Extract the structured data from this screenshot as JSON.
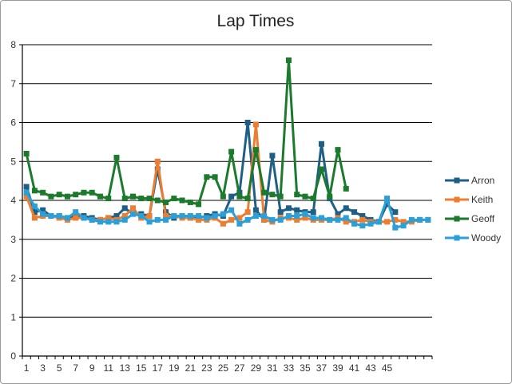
{
  "chart_data": {
    "type": "line",
    "title": "Lap Times",
    "xlabel": "",
    "ylabel": "",
    "ylim": [
      0,
      8
    ],
    "yticks": [
      0,
      1,
      2,
      3,
      4,
      5,
      6,
      7,
      8
    ],
    "x_tick_labels": [
      1,
      3,
      5,
      7,
      9,
      11,
      13,
      15,
      17,
      19,
      21,
      23,
      25,
      27,
      29,
      31,
      33,
      35,
      37,
      39,
      41,
      43,
      45
    ],
    "x_count": 50,
    "grid": true,
    "legend_position": "right",
    "series": [
      {
        "name": "Arron",
        "color": "#1f5f86",
        "values": [
          4.35,
          3.7,
          3.75,
          3.6,
          3.6,
          3.55,
          3.6,
          3.6,
          3.55,
          3.5,
          3.55,
          3.6,
          3.8,
          3.65,
          3.65,
          3.6,
          4.8,
          3.7,
          3.55,
          3.6,
          3.55,
          3.55,
          3.6,
          3.65,
          3.6,
          4.1,
          4.2,
          6.0,
          3.75,
          3.5,
          5.15,
          3.7,
          3.8,
          3.75,
          3.7,
          3.7,
          5.45,
          4.05,
          3.65,
          3.8,
          3.7,
          3.6,
          3.5,
          3.45,
          3.9,
          3.7
        ]
      },
      {
        "name": "Keith",
        "color": "#ed7d31",
        "values": [
          4.1,
          3.55,
          3.6,
          3.6,
          3.55,
          3.5,
          3.55,
          3.55,
          3.5,
          3.5,
          3.55,
          3.5,
          3.6,
          3.8,
          3.55,
          3.6,
          5.0,
          3.6,
          3.6,
          3.55,
          3.55,
          3.5,
          3.5,
          3.55,
          3.4,
          3.5,
          3.55,
          3.7,
          5.95,
          3.5,
          3.45,
          3.55,
          3.55,
          3.5,
          3.55,
          3.5,
          3.5,
          3.5,
          3.55,
          3.45,
          3.45,
          3.5,
          3.45,
          3.45,
          3.45,
          3.5,
          3.45,
          3.45,
          3.5,
          3.5
        ]
      },
      {
        "name": "Geoff",
        "color": "#1c7a2c",
        "values": [
          5.2,
          4.25,
          4.2,
          4.1,
          4.15,
          4.1,
          4.15,
          4.2,
          4.2,
          4.1,
          4.05,
          5.1,
          4.05,
          4.1,
          4.05,
          4.05,
          4.0,
          3.95,
          4.05,
          4.0,
          3.95,
          3.9,
          4.6,
          4.6,
          4.1,
          5.25,
          4.1,
          4.05,
          5.3,
          4.2,
          4.15,
          4.1,
          7.6,
          4.15,
          4.1,
          4.05,
          4.8,
          4.1,
          5.3,
          4.3
        ]
      },
      {
        "name": "Woody",
        "color": "#2b9fd8",
        "values": [
          4.2,
          3.85,
          3.65,
          3.6,
          3.6,
          3.55,
          3.7,
          3.55,
          3.5,
          3.45,
          3.45,
          3.45,
          3.5,
          3.65,
          3.6,
          3.45,
          3.5,
          3.5,
          3.6,
          3.6,
          3.6,
          3.6,
          3.55,
          3.6,
          3.65,
          3.75,
          3.4,
          3.5,
          3.6,
          3.6,
          3.5,
          3.5,
          3.6,
          3.6,
          3.65,
          3.55,
          3.55,
          3.5,
          3.5,
          3.55,
          3.4,
          3.35,
          3.4,
          3.45,
          4.05,
          3.3,
          3.35,
          3.5,
          3.5,
          3.5
        ]
      }
    ]
  }
}
